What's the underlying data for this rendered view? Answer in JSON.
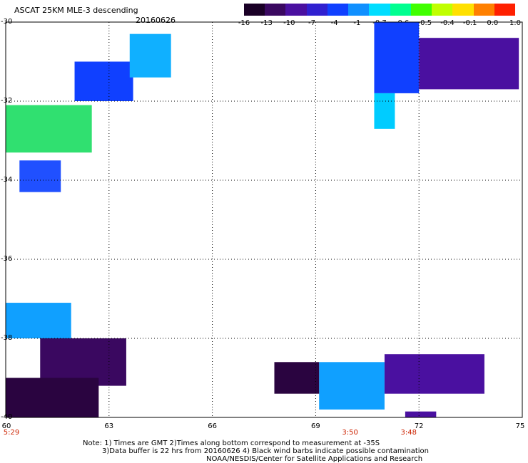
{
  "header": {
    "title": "ASCAT 25KM MLE-3 descending",
    "date": "20160626"
  },
  "colorbar": {
    "labels": [
      "-16",
      "-13",
      "-10",
      "-7",
      "-4",
      "-1",
      "-0.7",
      "-0.6",
      "-0.5",
      "-0.4",
      "-0.1",
      "0.0",
      "1.0"
    ],
    "colors": [
      "#1a0026",
      "#3a0860",
      "#4a10a0",
      "#3020d0",
      "#1040ff",
      "#1090ff",
      "#00ddff",
      "#00ff90",
      "#40ff00",
      "#c0ff00",
      "#ffe000",
      "#ff8000",
      "#ff2000"
    ]
  },
  "axes": {
    "lat_labels": [
      "-30",
      "-32",
      "-34",
      "-36",
      "-38",
      "-40"
    ],
    "lon_labels": [
      "60",
      "63",
      "66",
      "69",
      "72",
      "75"
    ],
    "lon_range": [
      60,
      75
    ],
    "lat_range": [
      -40,
      -30
    ],
    "grid": true
  },
  "pass_times": [
    {
      "label": "5:29",
      "lon": 60
    },
    {
      "label": "3:50",
      "lon": 70
    },
    {
      "label": "3:48",
      "lon": 71.7
    }
  ],
  "notes": {
    "line1": "Note: 1) Times are GMT 2)Times along bottom correspond to measurement at -35S",
    "line2": "3)Data buffer is 22 hrs from 20160626 4) Black wind barbs indicate possible contamination",
    "line3": "NOAA/NESDIS/Center for Satellite Applications and Research"
  },
  "swaths": [
    {
      "name": "nw-blue",
      "color": "#1040ff",
      "lon": [
        62.0,
        63.7
      ],
      "lat": [
        -32.0,
        -31.0
      ]
    },
    {
      "name": "nw-cyan-top",
      "color": "#10b0ff",
      "lon": [
        63.6,
        64.8
      ],
      "lat": [
        -31.4,
        -30.3
      ]
    },
    {
      "name": "nw-green",
      "color": "#30e070",
      "lon": [
        60.0,
        62.5
      ],
      "lat": [
        -33.3,
        -32.1
      ]
    },
    {
      "name": "nw-lower-blue",
      "color": "#2050ff",
      "lon": [
        60.4,
        61.6
      ],
      "lat": [
        -34.3,
        -33.5
      ]
    },
    {
      "name": "ne-blue",
      "color": "#1040ff",
      "lon": [
        70.7,
        72.0
      ],
      "lat": [
        -31.8,
        -30.0
      ]
    },
    {
      "name": "ne-cyan",
      "color": "#00ccff",
      "lon": [
        70.7,
        71.3
      ],
      "lat": [
        -32.7,
        -31.8
      ]
    },
    {
      "name": "ne-purple",
      "color": "#4a10a0",
      "lon": [
        72.0,
        74.9
      ],
      "lat": [
        -31.7,
        -30.4
      ]
    },
    {
      "name": "sw-cyan",
      "color": "#10a0ff",
      "lon": [
        60.0,
        61.9
      ],
      "lat": [
        -38.0,
        -37.1
      ]
    },
    {
      "name": "sw-purple",
      "color": "#3a0860",
      "lon": [
        61.0,
        63.5
      ],
      "lat": [
        -39.2,
        -38.0
      ]
    },
    {
      "name": "sw-dark",
      "color": "#2a0440",
      "lon": [
        60.0,
        62.7
      ],
      "lat": [
        -40.0,
        -39.0
      ]
    },
    {
      "name": "se-cyan",
      "color": "#10a0ff",
      "lon": [
        69.1,
        71.0
      ],
      "lat": [
        -39.8,
        -38.6
      ]
    },
    {
      "name": "se-dark",
      "color": "#2a0440",
      "lon": [
        67.8,
        69.1
      ],
      "lat": [
        -39.4,
        -38.6
      ]
    },
    {
      "name": "se-purple",
      "color": "#4a10a0",
      "lon": [
        71.0,
        73.9
      ],
      "lat": [
        -39.4,
        -38.4
      ]
    },
    {
      "name": "se-small-purple",
      "color": "#4a10a0",
      "lon": [
        71.6,
        72.5
      ],
      "lat": [
        -40.0,
        -39.85
      ]
    }
  ]
}
